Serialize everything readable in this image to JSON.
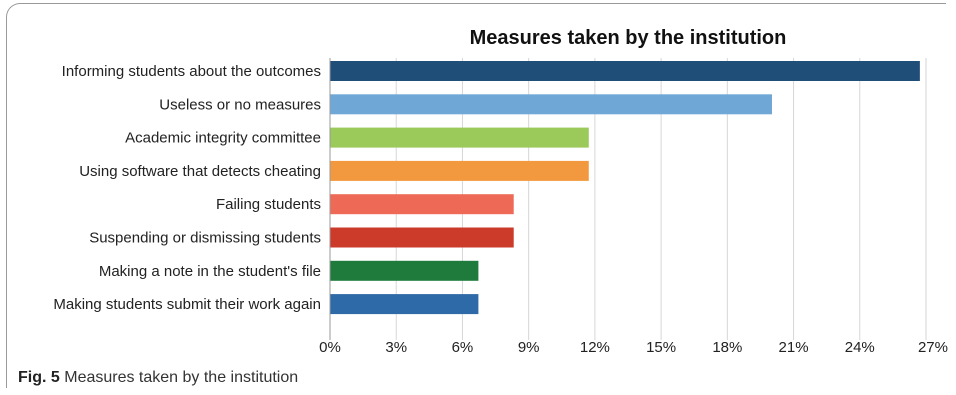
{
  "chart_data": {
    "type": "bar",
    "orientation": "horizontal",
    "title": "Measures taken by the institution",
    "categories": [
      "Informing students about the outcomes",
      "Useless or no measures",
      "Academic integrity committee",
      "Using software that detects cheating",
      "Failing students",
      "Suspending or dismissing students",
      "Making a note in the student's file",
      "Making students submit their work again"
    ],
    "values": [
      26.7,
      20.0,
      11.7,
      11.7,
      8.3,
      8.3,
      6.7,
      6.7
    ],
    "colors": [
      "#1f4e79",
      "#6fa8d6",
      "#9bc95a",
      "#f2993f",
      "#ef6a56",
      "#cc3a2a",
      "#1e7b3c",
      "#2f6aa8"
    ],
    "xlim": [
      0,
      27
    ],
    "xticks": [
      "0%",
      "3%",
      "6%",
      "9%",
      "12%",
      "15%",
      "18%",
      "21%",
      "24%",
      "27%"
    ],
    "grid": true
  },
  "caption": {
    "label": "Fig. 5",
    "text": "Measures taken by the institution"
  }
}
